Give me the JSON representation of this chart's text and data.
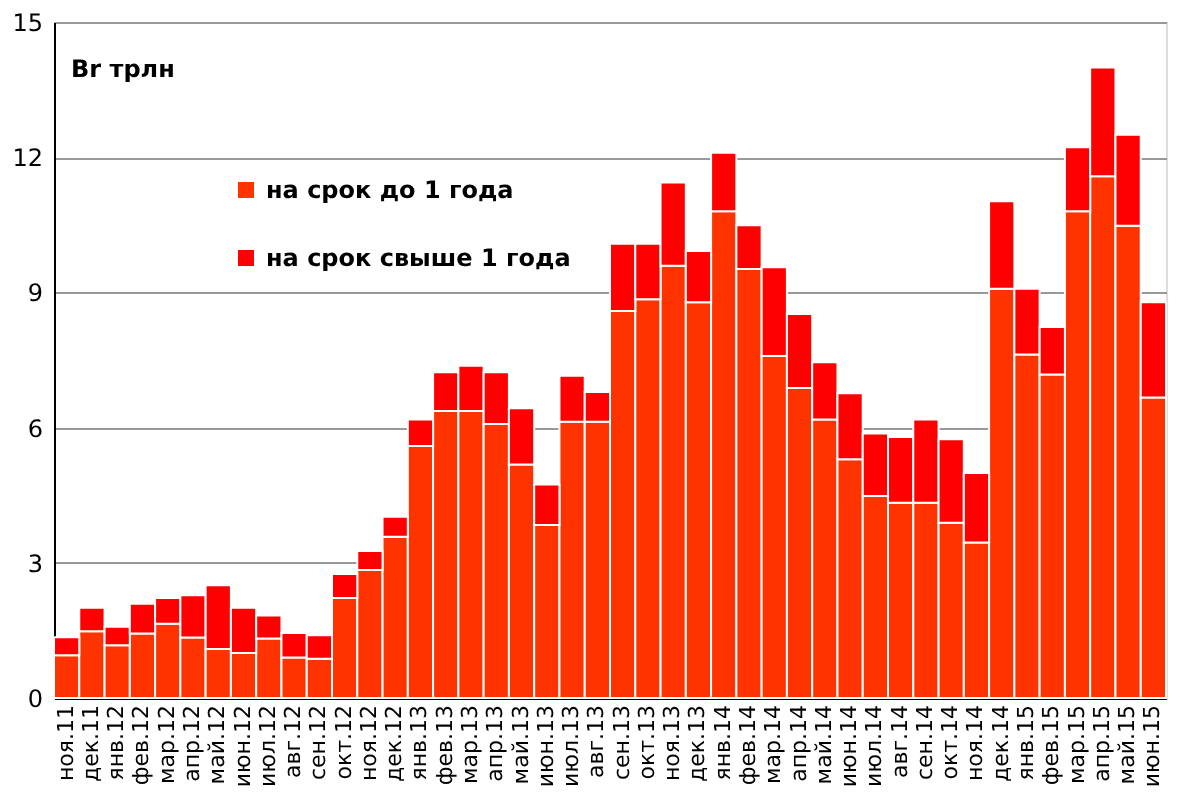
{
  "chart_data": {
    "type": "bar",
    "stacked": true,
    "ylabel": "Br трлн",
    "categories": [
      "ноя.11",
      "дек.11",
      "янв.12",
      "фев.12",
      "мар.12",
      "апр.12",
      "май.12",
      "июн.12",
      "июл.12",
      "авг.12",
      "сен.12",
      "окт.12",
      "ноя.12",
      "дек.12",
      "янв.13",
      "фев.13",
      "мар.13",
      "апр.13",
      "май.13",
      "июн.13",
      "июл.13",
      "авг.13",
      "сен.13",
      "окт.13",
      "ноя.13",
      "дек.13",
      "янв.14",
      "фев.14",
      "мар.14",
      "апр.14",
      "май.14",
      "июн.14",
      "июл.14",
      "авг.14",
      "сен.14",
      "окт.14",
      "ноя.14",
      "дек.14",
      "янв.15",
      "фев.15",
      "мар.15",
      "апр.15",
      "май.15",
      "июн.15"
    ],
    "series": [
      {
        "name": "на срок до 1 года",
        "color": "#ff3300",
        "values": [
          0.95,
          1.48,
          1.17,
          1.43,
          1.65,
          1.34,
          1.09,
          1.0,
          1.32,
          0.9,
          0.87,
          2.22,
          2.84,
          3.58,
          5.59,
          6.37,
          6.37,
          6.08,
          5.18,
          3.84,
          6.13,
          6.13,
          8.59,
          8.85,
          9.59,
          8.78,
          10.8,
          9.52,
          7.59,
          6.88,
          6.18,
          5.3,
          4.48,
          4.33,
          4.33,
          3.89,
          3.45,
          9.08,
          7.62,
          7.18,
          10.8,
          11.58,
          10.48,
          6.67
        ]
      },
      {
        "name": "на срок свыше  1 года",
        "color": "#ff0000",
        "values": [
          0.4,
          0.52,
          0.41,
          0.66,
          0.57,
          0.94,
          1.41,
          1.0,
          0.51,
          0.54,
          0.52,
          0.53,
          0.42,
          0.44,
          0.59,
          0.86,
          1.0,
          1.15,
          1.25,
          0.9,
          1.02,
          0.66,
          1.49,
          1.23,
          1.85,
          1.14,
          1.3,
          0.97,
          1.97,
          1.64,
          1.27,
          1.46,
          1.39,
          1.46,
          1.85,
          1.85,
          1.54,
          1.94,
          1.46,
          1.05,
          1.42,
          2.41,
          2.02,
          2.11
        ]
      }
    ],
    "ylim": [
      0,
      15
    ],
    "yticks": [
      0,
      3,
      6,
      9,
      12,
      15
    ],
    "grid": "y",
    "legend": "top left"
  }
}
